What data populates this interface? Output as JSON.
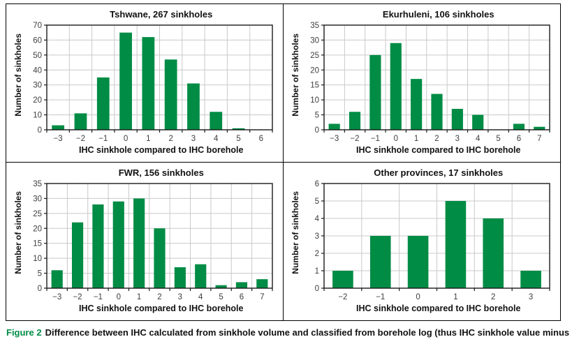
{
  "figure": {
    "caption_label": "Figure 2",
    "caption_text": "Difference between IHC calculated from sinkhole volume and classified from borehole log (thus IHC sinkhole value minus IHC borehole value)"
  },
  "colors": {
    "bar": "#008C45",
    "grid": "#C9C9C9",
    "axis": "#1A1A1A",
    "tick_label": "#3D3D3D",
    "caption_green": "#008C45"
  },
  "chart_data": [
    {
      "type": "bar",
      "title": "Tshwane, 267 sinkholes",
      "xlabel": "IHC sinkhole compared to IHC borehole",
      "ylabel": "Number of sinkholes",
      "categories": [
        "−3",
        "−2",
        "−1",
        "0",
        "1",
        "2",
        "3",
        "4",
        "5",
        "6"
      ],
      "values": [
        3,
        11,
        35,
        65,
        62,
        47,
        31,
        12,
        1,
        0
      ],
      "ylim": [
        0,
        70
      ],
      "ystep": 10,
      "grid": true,
      "legend": "none"
    },
    {
      "type": "bar",
      "title": "Ekurhuleni, 106 sinkholes",
      "xlabel": "IHC sinkhole compared to IHC borehole",
      "ylabel": "Number of sinkholes",
      "categories": [
        "−3",
        "−2",
        "−1",
        "0",
        "1",
        "2",
        "3",
        "4",
        "5",
        "6",
        "7"
      ],
      "values": [
        2,
        6,
        25,
        29,
        17,
        12,
        7,
        5,
        0,
        2,
        1
      ],
      "ylim": [
        0,
        35
      ],
      "ystep": 5,
      "grid": true,
      "legend": "none"
    },
    {
      "type": "bar",
      "title": "FWR, 156 sinkholes",
      "xlabel": "IHC sinkhole compared to IHC borehole",
      "ylabel": "Number of sinkholes",
      "categories": [
        "−3",
        "−2",
        "−1",
        "0",
        "1",
        "2",
        "3",
        "4",
        "5",
        "6",
        "7"
      ],
      "values": [
        6,
        22,
        28,
        29,
        30,
        20,
        7,
        8,
        1,
        2,
        3
      ],
      "ylim": [
        0,
        35
      ],
      "ystep": 5,
      "grid": true,
      "legend": "none"
    },
    {
      "type": "bar",
      "title": "Other provinces, 17 sinkholes",
      "xlabel": "IHC sinkhole compared to IHC borehole",
      "ylabel": "Number of sinkholes",
      "categories": [
        "−2",
        "−1",
        "0",
        "1",
        "2",
        "3"
      ],
      "values": [
        1,
        3,
        3,
        5,
        4,
        1
      ],
      "ylim": [
        0,
        6
      ],
      "ystep": 1,
      "grid": true,
      "legend": "none"
    }
  ]
}
